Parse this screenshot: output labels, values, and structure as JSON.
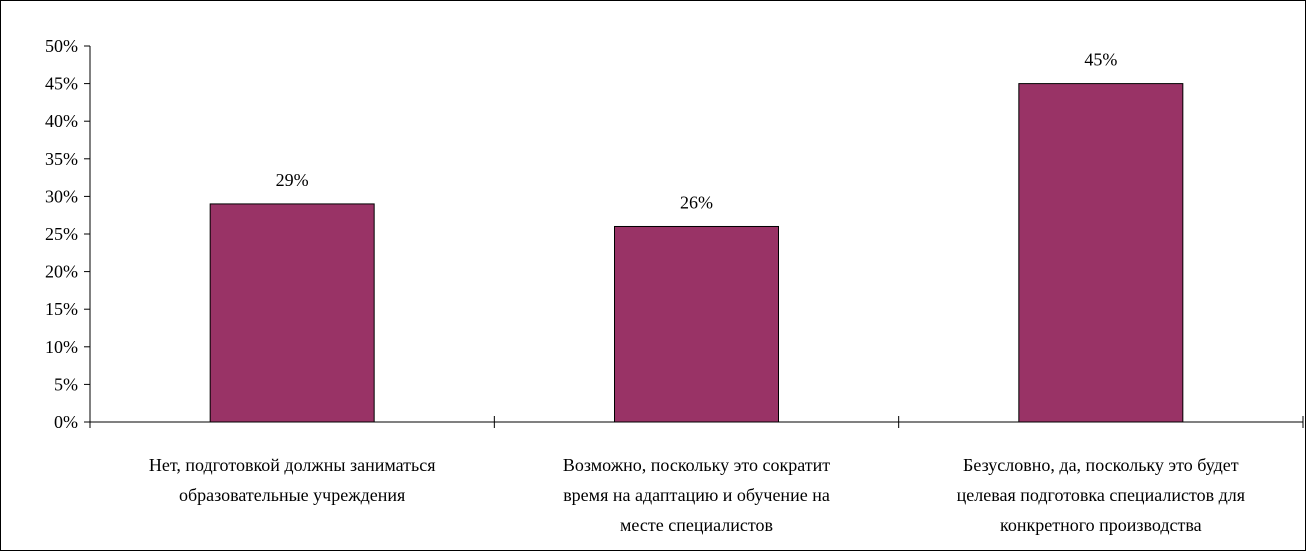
{
  "chart_data": {
    "type": "bar",
    "categories": [
      [
        "Нет, подготовкой должны заниматься",
        "образовательные учреждения"
      ],
      [
        "Возможно, поскольку это сократит",
        "время на адаптацию и обучение на",
        "месте специалистов"
      ],
      [
        "Безусловно, да, поскольку это будет",
        "целевая подготовка специалистов для",
        "конкретного производства"
      ]
    ],
    "values": [
      29,
      26,
      45
    ],
    "data_labels": [
      "29%",
      "26%",
      "45%"
    ],
    "y_ticks": [
      "0%",
      "5%",
      "10%",
      "15%",
      "20%",
      "25%",
      "30%",
      "35%",
      "40%",
      "45%",
      "50%"
    ],
    "ylim": [
      0,
      50
    ],
    "title": "",
    "xlabel": "",
    "ylabel": "",
    "grid": false,
    "legend": "none",
    "colors": {
      "bar": "#993366",
      "bar_border": "#000000",
      "frame": "#000000"
    }
  }
}
